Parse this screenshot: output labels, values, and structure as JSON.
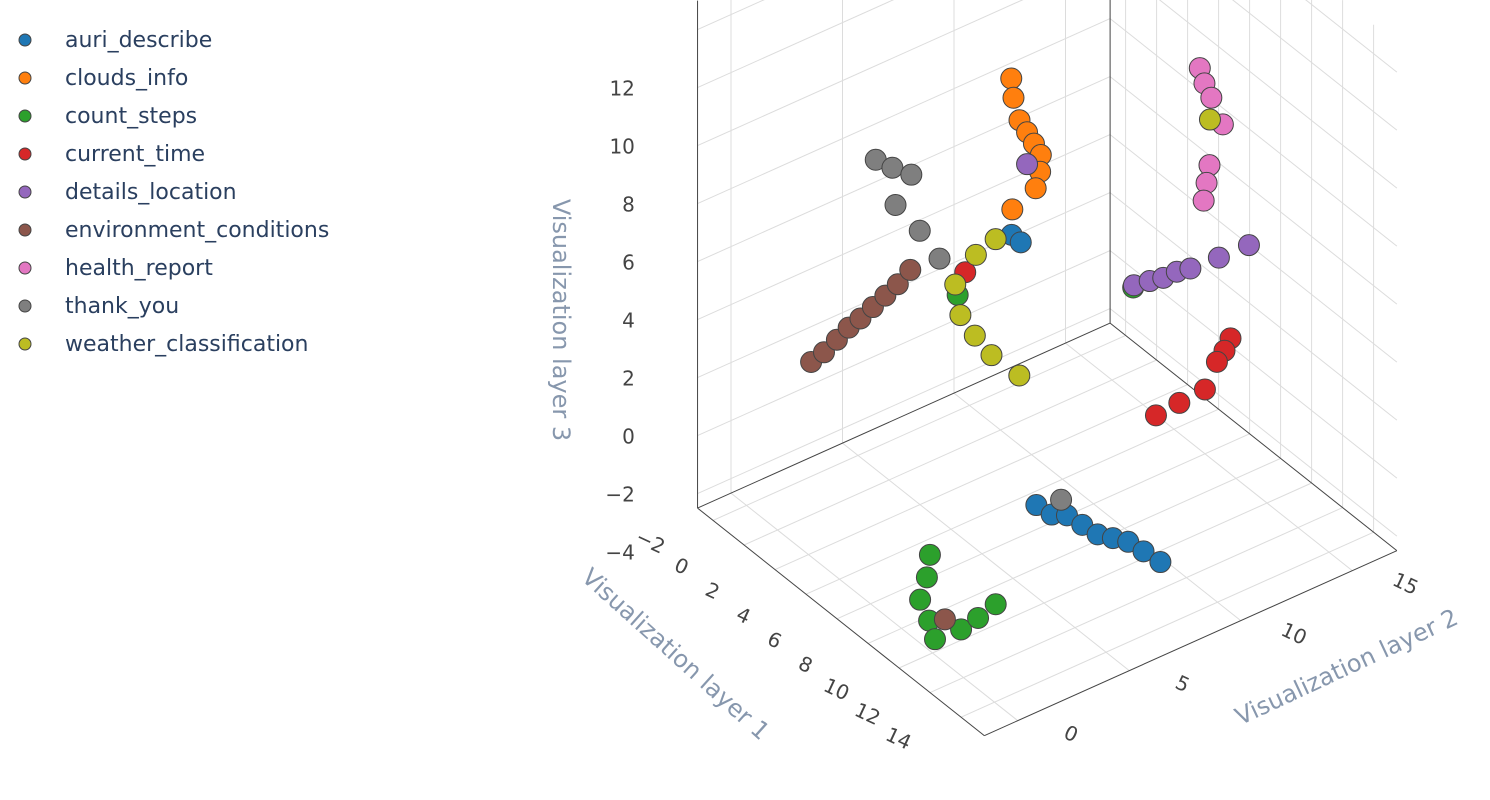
{
  "chart_data": {
    "type": "scatter3d",
    "xaxis_title": "Visualization layer 1",
    "yaxis_title": "Visualization layer 2",
    "zaxis_title": "Visualization layer 3",
    "xlim": [
      -3,
      15.5
    ],
    "ylim": [
      -1.5,
      17
    ],
    "zlim": [
      -4.5,
      13
    ],
    "xticks": [
      {
        "value": -2,
        "label": "−2"
      },
      0,
      2,
      4,
      6,
      8,
      10,
      12,
      14
    ],
    "yticks": [
      0,
      5,
      10,
      15
    ],
    "zticks": [
      {
        "value": -4,
        "label": "−4"
      },
      {
        "value": -2,
        "label": "−2"
      },
      0,
      2,
      4,
      6,
      8,
      10,
      12
    ],
    "grid": true,
    "legend": "top-left",
    "series": [
      {
        "name": "auri_describe",
        "color": "#1f77b4",
        "x": [
          8.5,
          9.2,
          9.9,
          10.6,
          11.3,
          12.0,
          12.7,
          13.4,
          14.2,
          8.2,
          8.5
        ],
        "y": [
          5.7,
          5.9,
          6.1,
          6.3,
          6.5,
          6.7,
          6.9,
          7.1,
          7.3,
          4.8,
          5.0
        ],
        "z": [
          -2,
          -2.1,
          -1.9,
          -2,
          -2.1,
          -2,
          -1.9,
          -2,
          -2.1,
          7.5,
          7.3
        ]
      },
      {
        "name": "clouds_info",
        "color": "#ff7f0e",
        "x": [
          7.6,
          7.6,
          7.7,
          7.9,
          8.2,
          8.5,
          8.6,
          8.6,
          8.1
        ],
        "y": [
          5.2,
          5.3,
          5.5,
          5.7,
          5.8,
          5.9,
          5.8,
          5.6,
          4.9
        ],
        "z": [
          12.5,
          11.8,
          11,
          10.6,
          10.3,
          10,
          9.5,
          9,
          8.3
        ]
      },
      {
        "name": "count_steps",
        "color": "#2ca02c",
        "x": [
          7.1,
          8.2,
          9.2,
          10.5,
          11.6,
          11.7,
          11.5,
          11.2,
          6.3,
          10.0
        ],
        "y": [
          1.9,
          1.0,
          0.0,
          -0.5,
          -1.0,
          0.1,
          1.0,
          2.0,
          3.7,
          9.0
        ],
        "z": [
          -3,
          -3,
          -3,
          -3,
          -3,
          -3,
          -3,
          -3,
          5,
          5
        ]
      },
      {
        "name": "current_time",
        "color": "#d62728",
        "x": [
          13.4,
          13.3,
          13.1,
          12.9,
          12.4,
          11.9,
          6.5
        ],
        "y": [
          11.0,
          10.8,
          10.6,
          10.2,
          9.4,
          8.7,
          3.9
        ],
        "z": [
          4,
          3.6,
          3.2,
          2.3,
          1.9,
          1.5,
          5.8
        ]
      },
      {
        "name": "details_location",
        "color": "#9467bd",
        "x": [
          9.9,
          10.2,
          10.5,
          10.8,
          11.1,
          11.5,
          12.0,
          7.9
        ],
        "y": [
          9.1,
          9.6,
          10.0,
          10.4,
          10.8,
          11.8,
          12.8,
          5.7
        ],
        "z": [
          5,
          5.1,
          5.2,
          5.4,
          5.5,
          5.7,
          6,
          9.5
        ]
      },
      {
        "name": "environment_conditions",
        "color": "#8c564b",
        "x": [
          2.6,
          3.0,
          3.4,
          3.8,
          4.2,
          4.5,
          4.8,
          5.1,
          5.4,
          10.8
        ],
        "y": [
          -0.3,
          0.0,
          0.3,
          0.55,
          0.8,
          1.15,
          1.5,
          1.85,
          2.2,
          0.0
        ],
        "z": [
          2.5,
          2.9,
          3.4,
          3.9,
          4.3,
          4.7,
          5.1,
          5.5,
          6,
          -3
        ]
      },
      {
        "name": "health_report",
        "color": "#e377c2",
        "x": [
          10.7,
          11.0,
          11.3,
          11.9,
          11.9,
          12.0,
          12.1
        ],
        "y": [
          11.5,
          11.5,
          11.6,
          11.7,
          11.1,
          10.9,
          10.7
        ],
        "z": [
          12,
          11.6,
          11.2,
          10.5,
          9.3,
          8.8,
          8.3
        ]
      },
      {
        "name": "thank_you",
        "color": "#7f7f7f",
        "x": [
          4.9,
          5.4,
          5.9,
          5.6,
          6.3,
          7.0,
          8.8
        ],
        "y": [
          1.0,
          1.4,
          1.9,
          1.4,
          2.0,
          2.4,
          6.6
        ],
        "z": [
          10,
          9.8,
          9.6,
          8.6,
          7.8,
          7,
          -2
        ]
      },
      {
        "name": "weather_classification",
        "color": "#bcbd22",
        "x": [
          7.4,
          6.9,
          6.4,
          5.9,
          6.0,
          6.9,
          7.6,
          11.5
        ],
        "y": [
          5.7,
          4.8,
          4.4,
          4.1,
          3.8,
          4.1,
          4.5,
          11.4
        ],
        "z": [
          2,
          2.8,
          3.4,
          4,
          5.2,
          6.5,
          7.2,
          10.6
        ]
      }
    ]
  }
}
